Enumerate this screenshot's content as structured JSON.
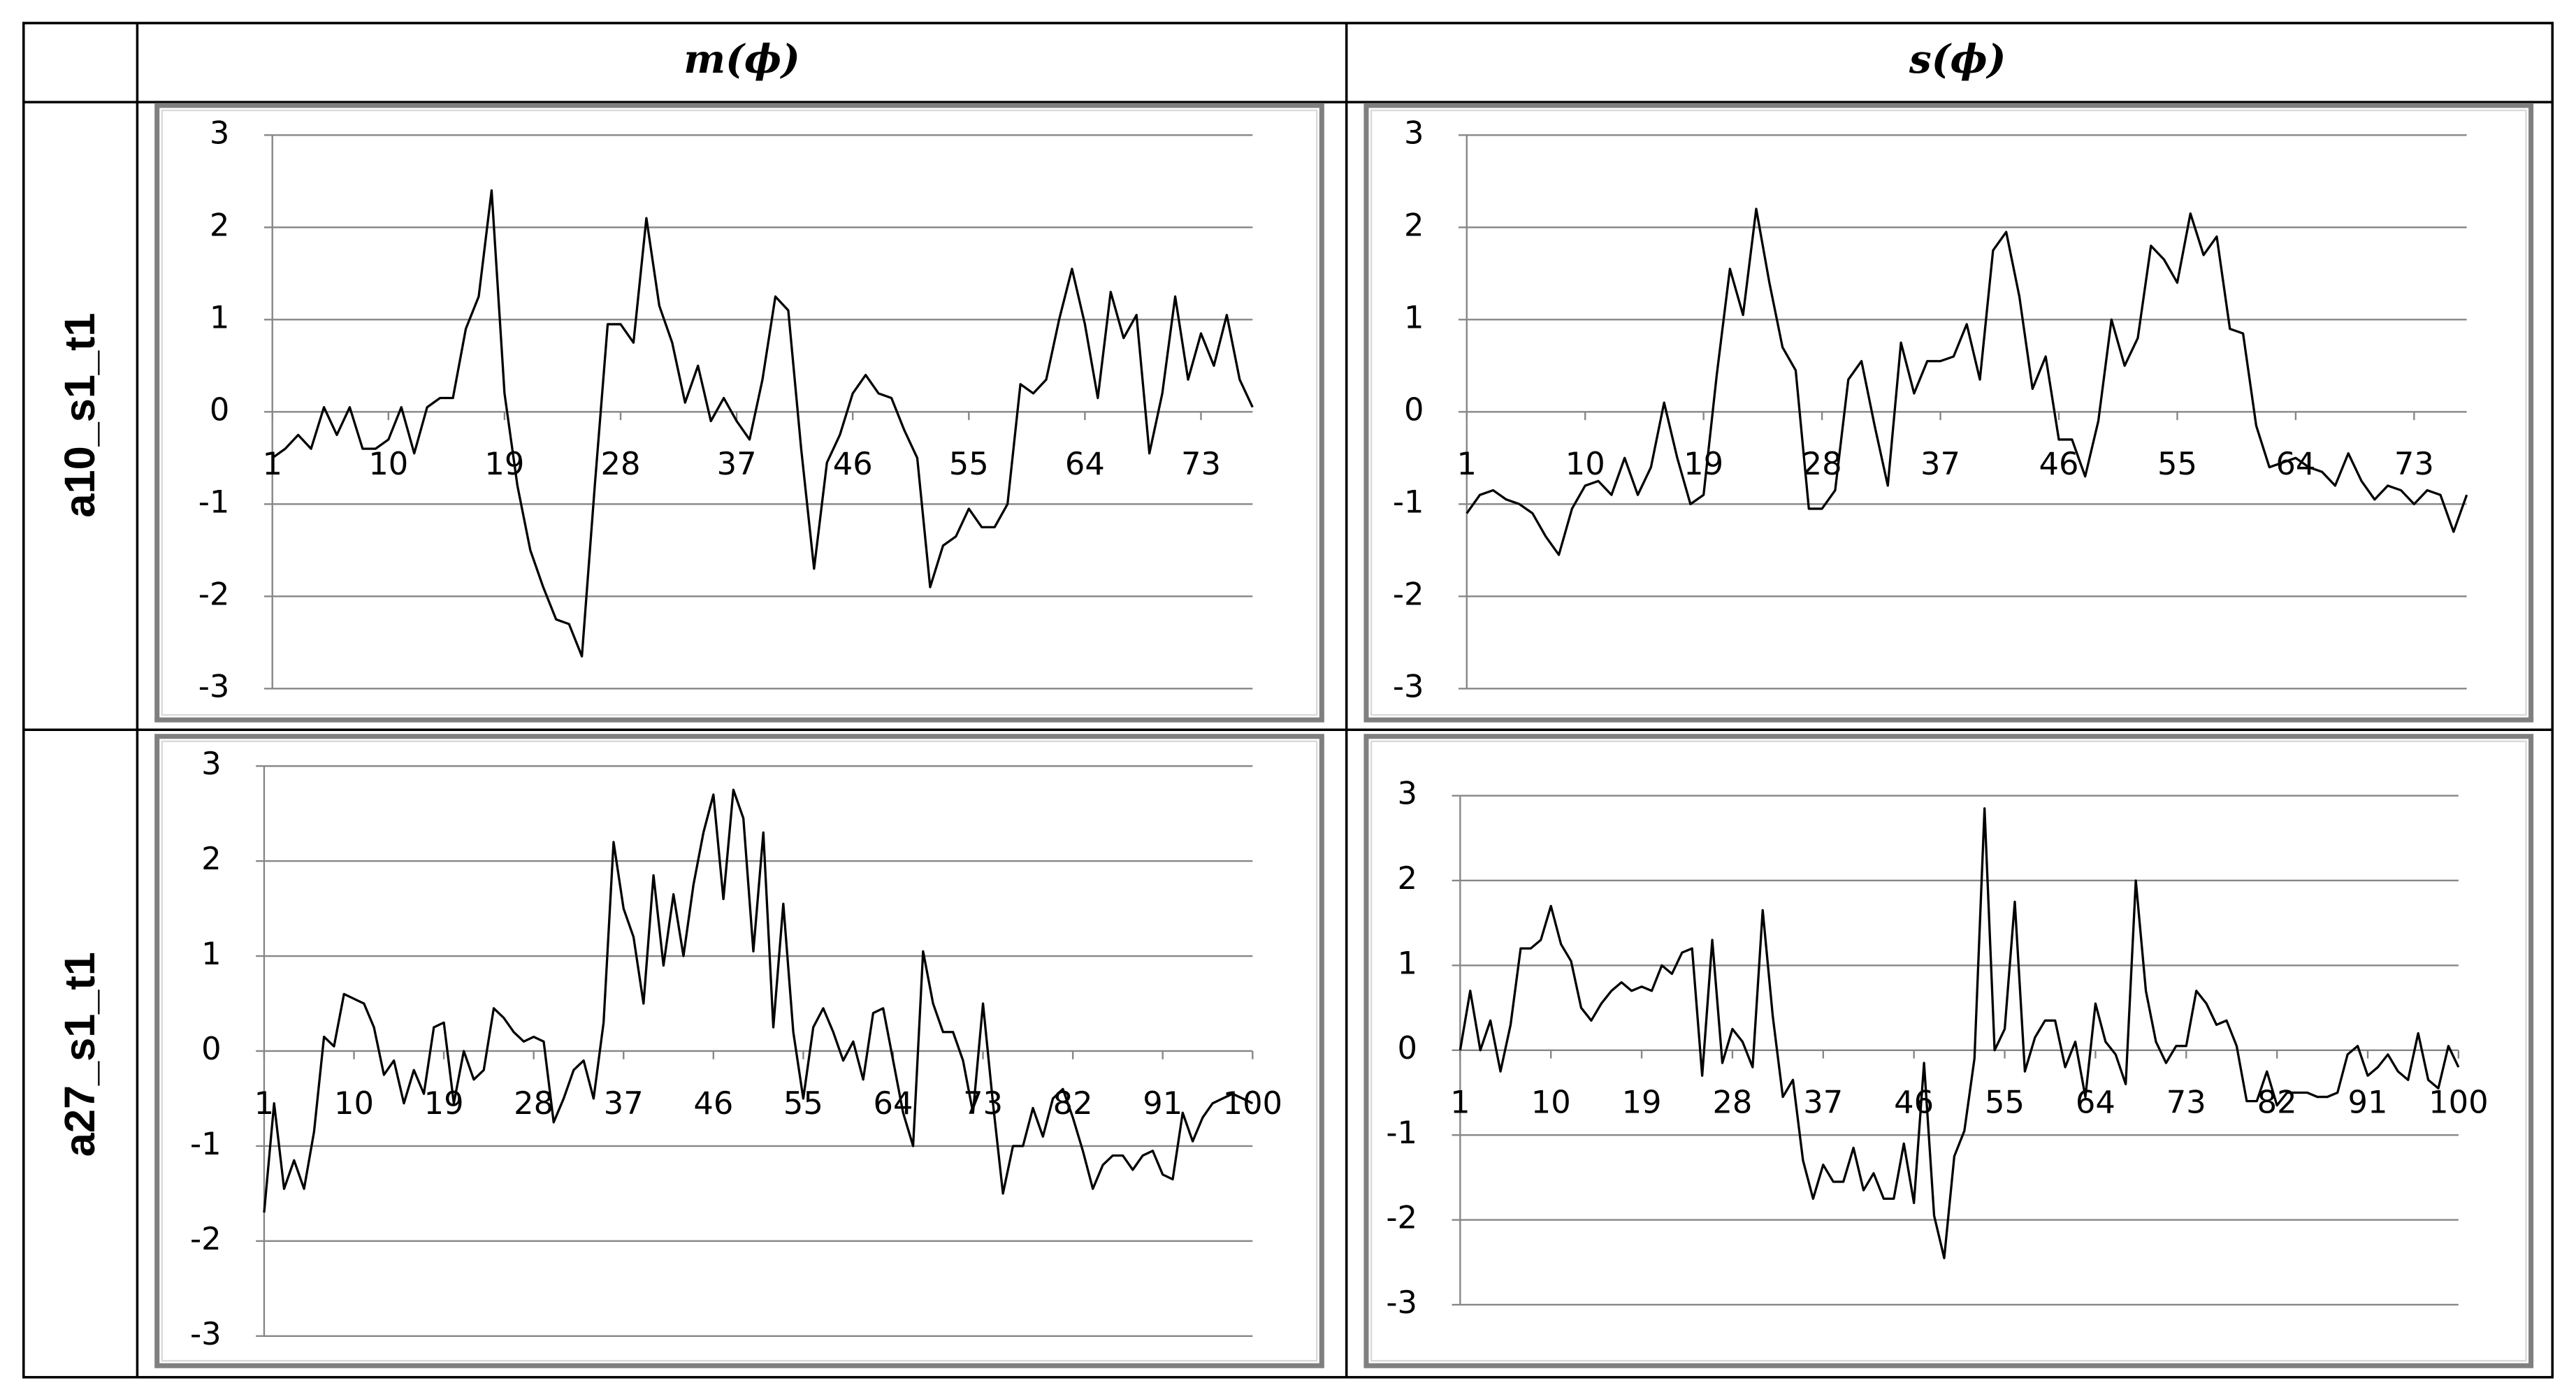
{
  "table": {
    "columns": [
      "m(ϕ)",
      "s(ϕ)"
    ],
    "rows": [
      "a10_s1_t1",
      "a27_s1_t1"
    ]
  },
  "chart_data": [
    {
      "type": "line",
      "color": "#000000",
      "grid": true,
      "x": [
        1,
        2,
        3,
        4,
        5,
        6,
        7,
        8,
        9,
        10,
        11,
        12,
        13,
        14,
        15,
        16,
        17,
        18,
        19,
        20,
        21,
        22,
        23,
        24,
        25,
        26,
        27,
        28,
        29,
        30,
        31,
        32,
        33,
        34,
        35,
        36,
        37,
        38,
        39,
        40,
        41,
        42,
        43,
        44,
        45,
        46,
        47,
        48,
        49,
        50,
        51,
        52,
        53,
        54,
        55,
        56,
        57,
        58,
        59,
        60,
        61,
        62,
        63,
        64,
        65,
        66,
        67,
        68,
        69,
        70,
        71,
        72,
        73,
        74,
        75,
        76,
        77
      ],
      "values": [
        -0.5,
        -0.4,
        -0.25,
        -0.4,
        0.05,
        -0.25,
        0.05,
        -0.4,
        -0.4,
        -0.3,
        0.05,
        -0.45,
        0.05,
        0.15,
        0.15,
        0.9,
        1.25,
        2.4,
        0.2,
        -0.8,
        -1.5,
        -1.9,
        -2.25,
        -2.3,
        -2.65,
        -0.8,
        0.95,
        0.95,
        0.75,
        2.1,
        1.15,
        0.75,
        0.1,
        0.5,
        -0.1,
        0.15,
        -0.1,
        -0.3,
        0.35,
        1.25,
        1.1,
        -0.4,
        -1.7,
        -0.55,
        -0.25,
        0.2,
        0.4,
        0.2,
        0.15,
        -0.2,
        -0.5,
        -1.9,
        -1.45,
        -1.35,
        -1.05,
        -1.25,
        -1.25,
        -1.0,
        0.3,
        0.2,
        0.35,
        1.0,
        1.55,
        0.95,
        0.15,
        1.3,
        0.8,
        1.05,
        -0.45,
        0.2,
        1.25,
        0.35,
        0.85,
        0.5,
        1.05,
        0.35,
        0.05
      ],
      "xlim": [
        1,
        77
      ],
      "xticks": [
        1,
        10,
        19,
        28,
        37,
        46,
        55,
        64,
        73
      ],
      "ylim": [
        -3,
        3
      ],
      "yticks": [
        -3,
        -2,
        -1,
        0,
        1,
        2,
        3
      ]
    },
    {
      "type": "line",
      "color": "#000000",
      "grid": true,
      "x": [
        1,
        2,
        3,
        4,
        5,
        6,
        7,
        8,
        9,
        10,
        11,
        12,
        13,
        14,
        15,
        16,
        17,
        18,
        19,
        20,
        21,
        22,
        23,
        24,
        25,
        26,
        27,
        28,
        29,
        30,
        31,
        32,
        33,
        34,
        35,
        36,
        37,
        38,
        39,
        40,
        41,
        42,
        43,
        44,
        45,
        46,
        47,
        48,
        49,
        50,
        51,
        52,
        53,
        54,
        55,
        56,
        57,
        58,
        59,
        60,
        61,
        62,
        63,
        64,
        65,
        66,
        67,
        68,
        69,
        70,
        71,
        72,
        73,
        74,
        75,
        76,
        77
      ],
      "values": [
        -1.1,
        -0.9,
        -0.85,
        -0.95,
        -1.0,
        -1.1,
        -1.35,
        -1.55,
        -1.05,
        -0.8,
        -0.75,
        -0.9,
        -0.5,
        -0.9,
        -0.6,
        0.1,
        -0.5,
        -1.0,
        -0.9,
        0.4,
        1.55,
        1.05,
        2.2,
        1.4,
        0.7,
        0.45,
        -1.05,
        -1.05,
        -0.85,
        0.35,
        0.55,
        -0.15,
        -0.8,
        0.75,
        0.2,
        0.55,
        0.55,
        0.6,
        0.95,
        0.35,
        1.75,
        1.95,
        1.25,
        0.25,
        0.6,
        -0.3,
        -0.3,
        -0.7,
        -0.1,
        1.0,
        0.5,
        0.8,
        1.8,
        1.65,
        1.4,
        2.15,
        1.7,
        1.9,
        0.9,
        0.85,
        -0.15,
        -0.6,
        -0.55,
        -0.5,
        -0.6,
        -0.65,
        -0.8,
        -0.45,
        -0.75,
        -0.95,
        -0.8,
        -0.85,
        -1.0,
        -0.85,
        -0.9,
        -1.3,
        -0.9
      ],
      "xlim": [
        1,
        77
      ],
      "xticks": [
        1,
        10,
        19,
        28,
        37,
        46,
        55,
        64,
        73
      ],
      "ylim": [
        -3,
        3
      ],
      "yticks": [
        -3,
        -2,
        -1,
        0,
        1,
        2,
        3
      ]
    },
    {
      "type": "line",
      "color": "#000000",
      "grid": true,
      "x": [
        1,
        2,
        3,
        4,
        5,
        6,
        7,
        8,
        9,
        10,
        11,
        12,
        13,
        14,
        15,
        16,
        17,
        18,
        19,
        20,
        21,
        22,
        23,
        24,
        25,
        26,
        27,
        28,
        29,
        30,
        31,
        32,
        33,
        34,
        35,
        36,
        37,
        38,
        39,
        40,
        41,
        42,
        43,
        44,
        45,
        46,
        47,
        48,
        49,
        50,
        51,
        52,
        53,
        54,
        55,
        56,
        57,
        58,
        59,
        60,
        61,
        62,
        63,
        64,
        65,
        66,
        67,
        68,
        69,
        70,
        71,
        72,
        73,
        74,
        75,
        76,
        77,
        78,
        79,
        80,
        81,
        82,
        83,
        84,
        85,
        86,
        87,
        88,
        89,
        90,
        91,
        92,
        93,
        94,
        95,
        96,
        97,
        98,
        99,
        100
      ],
      "values": [
        -1.7,
        -0.55,
        -1.45,
        -1.15,
        -1.45,
        -0.85,
        0.15,
        0.05,
        0.6,
        0.55,
        0.5,
        0.25,
        -0.25,
        -0.1,
        -0.55,
        -0.2,
        -0.45,
        0.25,
        0.3,
        -0.55,
        0.0,
        -0.3,
        -0.2,
        0.45,
        0.35,
        0.2,
        0.1,
        0.15,
        0.1,
        -0.75,
        -0.5,
        -0.2,
        -0.1,
        -0.5,
        0.3,
        2.2,
        1.5,
        1.2,
        0.5,
        1.85,
        0.9,
        1.65,
        1.0,
        1.75,
        2.3,
        2.7,
        1.6,
        2.75,
        2.45,
        1.05,
        2.3,
        0.25,
        1.55,
        0.2,
        -0.5,
        0.25,
        0.45,
        0.2,
        -0.1,
        0.1,
        -0.3,
        0.4,
        0.45,
        -0.1,
        -0.65,
        -1.0,
        1.05,
        0.5,
        0.2,
        0.2,
        -0.1,
        -0.65,
        0.5,
        -0.55,
        -1.5,
        -1.0,
        -1.0,
        -0.6,
        -0.9,
        -0.5,
        -0.4,
        -0.7,
        -1.05,
        -1.45,
        -1.2,
        -1.1,
        -1.1,
        -1.25,
        -1.1,
        -1.05,
        -1.3,
        -1.35,
        -0.65,
        -0.95,
        -0.7,
        -0.55,
        -0.5,
        -0.45,
        -0.5,
        -0.55
      ],
      "xlim": [
        1,
        100
      ],
      "xticks": [
        1,
        10,
        19,
        28,
        37,
        46,
        55,
        64,
        73,
        82,
        91,
        100
      ],
      "ylim": [
        -3,
        3
      ],
      "yticks": [
        -3,
        -2,
        -1,
        0,
        1,
        2,
        3
      ]
    },
    {
      "type": "line",
      "color": "#000000",
      "grid": true,
      "x": [
        1,
        2,
        3,
        4,
        5,
        6,
        7,
        8,
        9,
        10,
        11,
        12,
        13,
        14,
        15,
        16,
        17,
        18,
        19,
        20,
        21,
        22,
        23,
        24,
        25,
        26,
        27,
        28,
        29,
        30,
        31,
        32,
        33,
        34,
        35,
        36,
        37,
        38,
        39,
        40,
        41,
        42,
        43,
        44,
        45,
        46,
        47,
        48,
        49,
        50,
        51,
        52,
        53,
        54,
        55,
        56,
        57,
        58,
        59,
        60,
        61,
        62,
        63,
        64,
        65,
        66,
        67,
        68,
        69,
        70,
        71,
        72,
        73,
        74,
        75,
        76,
        77,
        78,
        79,
        80,
        81,
        82,
        83,
        84,
        85,
        86,
        87,
        88,
        89,
        90,
        91,
        92,
        93,
        94,
        95,
        96,
        97,
        98,
        99,
        100
      ],
      "values": [
        0.0,
        0.7,
        0.0,
        0.35,
        -0.25,
        0.3,
        1.2,
        1.2,
        1.3,
        1.7,
        1.25,
        1.05,
        0.5,
        0.35,
        0.55,
        0.7,
        0.8,
        0.7,
        0.75,
        0.7,
        1.0,
        0.9,
        1.15,
        1.2,
        -0.3,
        1.3,
        -0.15,
        0.25,
        0.1,
        -0.2,
        1.65,
        0.4,
        -0.55,
        -0.35,
        -1.3,
        -1.75,
        -1.35,
        -1.55,
        -1.55,
        -1.15,
        -1.65,
        -1.45,
        -1.75,
        -1.75,
        -1.1,
        -1.8,
        -0.15,
        -1.95,
        -2.45,
        -1.25,
        -0.95,
        -0.1,
        2.85,
        0.0,
        0.25,
        1.75,
        -0.25,
        0.15,
        0.35,
        0.35,
        -0.2,
        0.1,
        -0.55,
        0.55,
        0.1,
        -0.05,
        -0.4,
        2.0,
        0.7,
        0.1,
        -0.15,
        0.05,
        0.05,
        0.7,
        0.55,
        0.3,
        0.35,
        0.05,
        -0.6,
        -0.6,
        -0.25,
        -0.65,
        -0.5,
        -0.5,
        -0.5,
        -0.55,
        -0.55,
        -0.5,
        -0.05,
        0.05,
        -0.3,
        -0.2,
        -0.05,
        -0.25,
        -0.35,
        0.2,
        -0.35,
        -0.45,
        0.05,
        -0.2
      ],
      "xlim": [
        1,
        100
      ],
      "xticks": [
        1,
        10,
        19,
        28,
        37,
        46,
        55,
        64,
        73,
        82,
        91,
        100
      ],
      "ylim": [
        -3,
        3
      ],
      "yticks": [
        -3,
        -2,
        -1,
        0,
        1,
        2,
        3
      ]
    }
  ]
}
